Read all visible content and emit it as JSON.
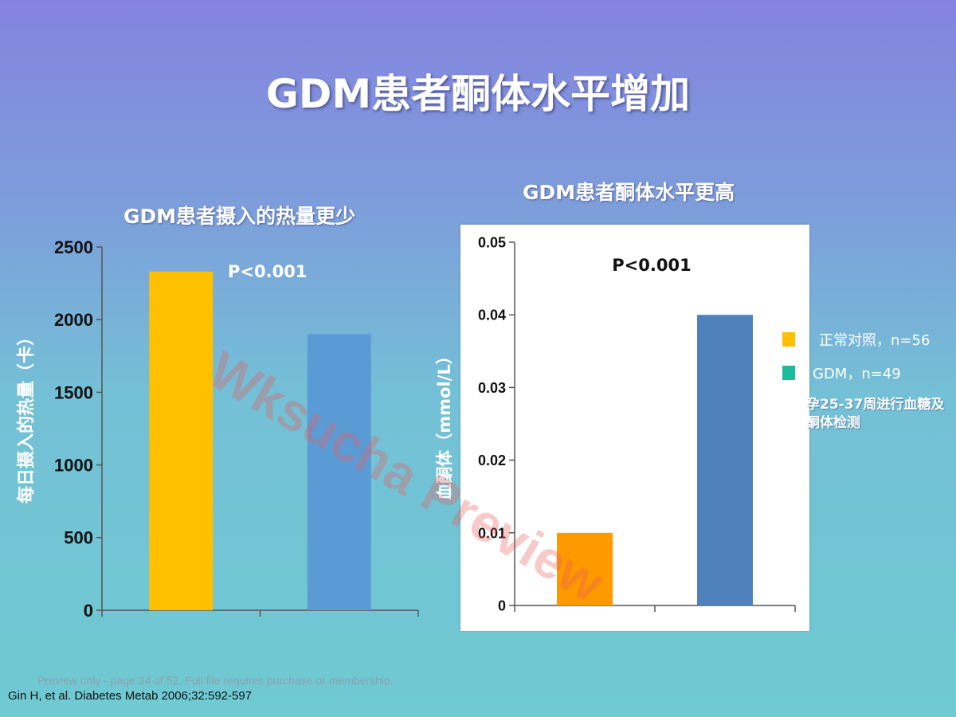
{
  "slide": {
    "title": "GDM患者酮体水平增加",
    "citation": "Gin H, et al. Diabetes Metab 2006;32:592-597",
    "preview_note": "Preview only - page 34 of 52. Full file requires purchase or membership.",
    "watermark": "Wksucha Preview"
  },
  "chart_data": [
    {
      "type": "bar",
      "title": "GDM患者摄入的热量更少",
      "ylabel": "每日摄入的热量（卡）",
      "xlabel": "",
      "ylim": [
        0,
        2500
      ],
      "yticks": [
        "0",
        "500",
        "1000",
        "1500",
        "2000",
        "2500"
      ],
      "categories": [
        "正常对照",
        "GDM"
      ],
      "values": [
        2330,
        1900
      ],
      "bar_colors": [
        "#ffc000",
        "#5b9bd5"
      ],
      "annotation": "P<0.001",
      "grid": false
    },
    {
      "type": "bar",
      "title": "GDM患者酮体水平更高",
      "ylabel": "血酮体（mmol/L）",
      "xlabel": "",
      "ylim": [
        0,
        0.05
      ],
      "yticks": [
        "0",
        "0.01",
        "0.02",
        "0.03",
        "0.04",
        "0.05"
      ],
      "categories": [
        "正常对照",
        "GDM"
      ],
      "values": [
        0.01,
        0.04
      ],
      "bar_colors": [
        "#ff9900",
        "#4f81bd"
      ],
      "annotation": "P<0.001",
      "grid": false,
      "legend": {
        "position": "right",
        "entries": [
          {
            "label": "正常对照，n=56",
            "color": "#ffc000"
          },
          {
            "label": "GDM，n=49",
            "color": "#1abc9c"
          }
        ]
      },
      "note": "孕25-37周进行血糖及酮体检测"
    }
  ]
}
